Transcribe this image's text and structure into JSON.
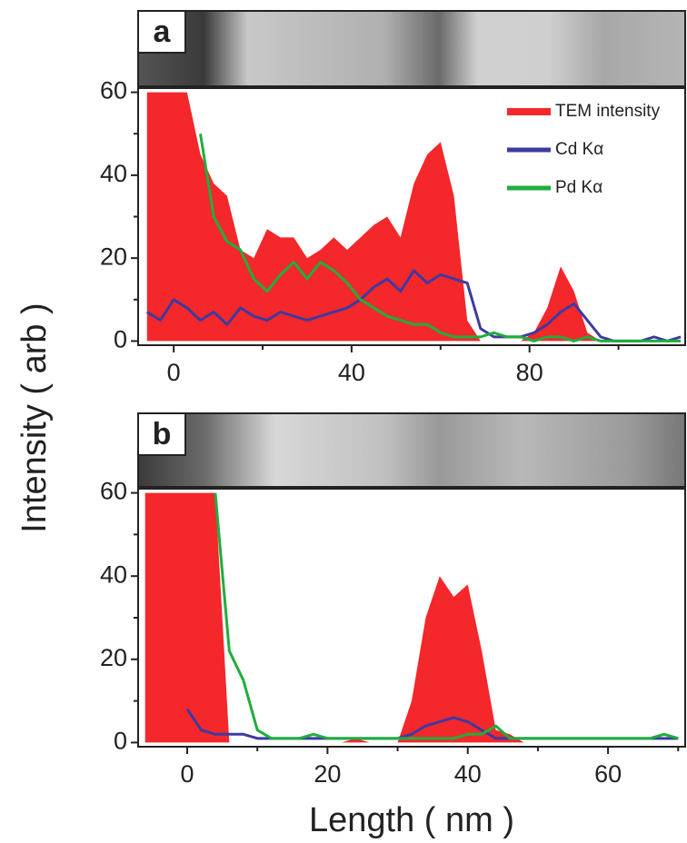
{
  "chart_data": [
    {
      "type": "area-line",
      "label": "a",
      "ylabel": "Intensity ( arb )",
      "legend": "upper right",
      "x": [
        -6,
        -3,
        0,
        3,
        6,
        9,
        12,
        15,
        18,
        21,
        24,
        27,
        30,
        33,
        36,
        39,
        42,
        45,
        48,
        51,
        54,
        57,
        60,
        63,
        66,
        69,
        72,
        75,
        78,
        81,
        84,
        87,
        90,
        93,
        96,
        99,
        102,
        105,
        108,
        111,
        114
      ],
      "series": [
        {
          "name": "TEM intensity",
          "color": "#f4272b",
          "fill": true,
          "values": [
            60,
            60,
            60,
            60,
            45,
            38,
            35,
            22,
            20,
            27,
            25,
            25,
            20,
            22,
            25,
            22,
            25,
            28,
            30,
            25,
            38,
            45,
            48,
            35,
            5,
            0,
            0,
            0,
            0,
            2,
            8,
            18,
            12,
            2,
            0,
            0,
            0,
            0,
            0,
            0,
            0
          ]
        },
        {
          "name": "Cd Kα",
          "color": "#3d3aa0",
          "fill": false,
          "values": [
            7,
            5,
            10,
            8,
            5,
            7,
            4,
            8,
            6,
            5,
            7,
            6,
            5,
            6,
            7,
            8,
            10,
            13,
            15,
            12,
            17,
            14,
            16,
            15,
            14,
            3,
            1,
            1,
            1,
            2,
            4,
            7,
            9,
            5,
            1,
            0,
            0,
            0,
            1,
            0,
            1
          ]
        },
        {
          "name": "Pd Kα",
          "color": "#1fae3c",
          "fill": false,
          "values": [
            null,
            null,
            null,
            null,
            50,
            30,
            24,
            22,
            15,
            12,
            16,
            19,
            15,
            19,
            17,
            14,
            10,
            8,
            6,
            5,
            4,
            4,
            2,
            1,
            1,
            1,
            2,
            1,
            1,
            0,
            1,
            1,
            0,
            1,
            0,
            0,
            0,
            0,
            0,
            0,
            0
          ]
        }
      ],
      "xlim": [
        -8,
        115
      ],
      "xticks": [
        0,
        40,
        80
      ],
      "xminorticks": [
        20,
        60,
        100
      ],
      "ylim": [
        -1,
        61
      ],
      "yticks": [
        0,
        20,
        40,
        60
      ],
      "yminorticks": [
        10,
        30,
        50
      ]
    },
    {
      "type": "area-line",
      "label": "b",
      "xlabel": "Length ( nm )",
      "x": [
        -6,
        -4,
        -2,
        0,
        2,
        4,
        6,
        8,
        10,
        12,
        14,
        16,
        18,
        20,
        22,
        24,
        26,
        28,
        30,
        32,
        34,
        36,
        38,
        40,
        42,
        44,
        46,
        48,
        50,
        52,
        54,
        56,
        58,
        60,
        62,
        64,
        66,
        68,
        70
      ],
      "series": [
        {
          "color": "#f4272b",
          "fill": true,
          "values": [
            60,
            60,
            60,
            60,
            60,
            60,
            0,
            0,
            0,
            0,
            0,
            0,
            0,
            0,
            0,
            1,
            0,
            0,
            0,
            10,
            30,
            40,
            35,
            38,
            22,
            3,
            2,
            0,
            0,
            0,
            0,
            0,
            0,
            0,
            0,
            0,
            0,
            0,
            0
          ]
        },
        {
          "color": "#3d3aa0",
          "fill": false,
          "values": [
            null,
            null,
            null,
            8,
            3,
            2,
            2,
            2,
            1,
            1,
            1,
            1,
            1,
            1,
            1,
            1,
            1,
            1,
            1,
            2,
            4,
            5,
            6,
            5,
            3,
            1,
            1,
            1,
            1,
            1,
            1,
            1,
            1,
            1,
            1,
            1,
            1,
            1,
            1
          ]
        },
        {
          "color": "#1fae3c",
          "fill": false,
          "values": [
            null,
            null,
            null,
            null,
            null,
            60,
            22,
            15,
            3,
            1,
            1,
            1,
            2,
            1,
            1,
            1,
            1,
            1,
            1,
            1,
            1,
            1,
            1,
            2,
            2,
            4,
            1,
            1,
            1,
            1,
            1,
            1,
            1,
            1,
            1,
            1,
            1,
            2,
            1
          ]
        }
      ],
      "xlim": [
        -7,
        71
      ],
      "xticks": [
        0,
        20,
        40,
        60
      ],
      "xminorticks": [
        10,
        30,
        50,
        70
      ],
      "ylim": [
        -1,
        61
      ],
      "yticks": [
        0,
        20,
        40,
        60
      ],
      "yminorticks": [
        10,
        30,
        50
      ]
    }
  ]
}
